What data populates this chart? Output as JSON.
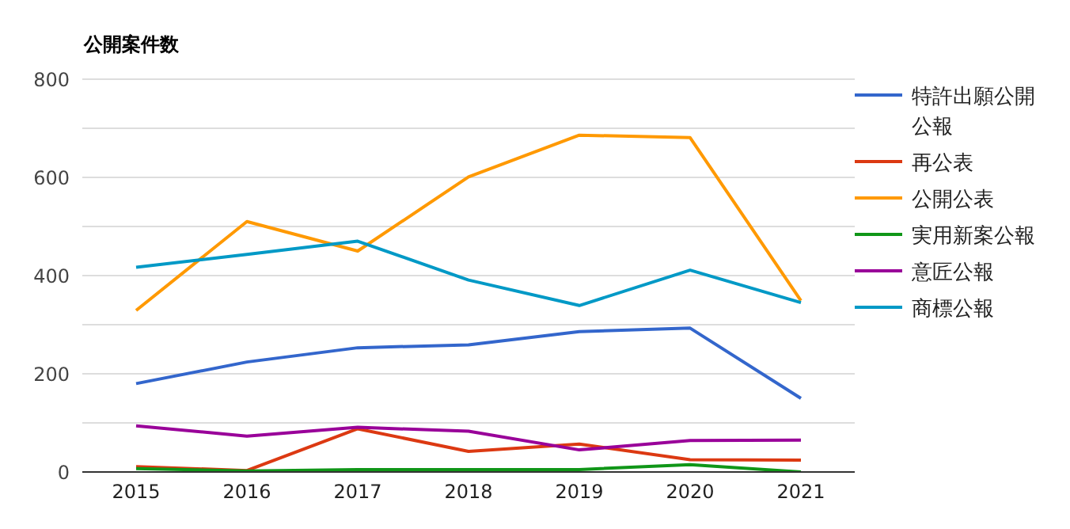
{
  "chart_data": {
    "type": "line",
    "title": "公開案件数",
    "categories": [
      "2015",
      "2016",
      "2017",
      "2018",
      "2019",
      "2020",
      "2021"
    ],
    "series": [
      {
        "name": "特許出願公開公報",
        "color": "#3366cc",
        "values": [
          180,
          224,
          253,
          259,
          286,
          293,
          150
        ]
      },
      {
        "name": "再公表",
        "color": "#dc3912",
        "values": [
          11,
          3,
          88,
          42,
          57,
          25,
          24
        ]
      },
      {
        "name": "公開公表",
        "color": "#ff9900",
        "values": [
          329,
          510,
          450,
          601,
          686,
          681,
          349
        ]
      },
      {
        "name": "実用新案公報",
        "color": "#109618",
        "values": [
          7,
          2,
          5,
          5,
          5,
          15,
          0
        ]
      },
      {
        "name": "意匠公報",
        "color": "#990099",
        "values": [
          94,
          73,
          91,
          83,
          45,
          64,
          65
        ]
      },
      {
        "name": "商標公報",
        "color": "#0099c6",
        "values": [
          417,
          443,
          470,
          391,
          339,
          411,
          345
        ]
      }
    ],
    "ylim": [
      0,
      800
    ],
    "yticks": [
      0,
      {
        "value": 100,
        "label": null
      },
      200,
      {
        "value": 300,
        "label": null
      },
      400,
      {
        "value": 500,
        "label": null
      },
      600,
      {
        "value": 700,
        "label": null
      },
      800
    ],
    "grid": "y",
    "legend": "right",
    "marker": "none",
    "line_style": "solid"
  }
}
